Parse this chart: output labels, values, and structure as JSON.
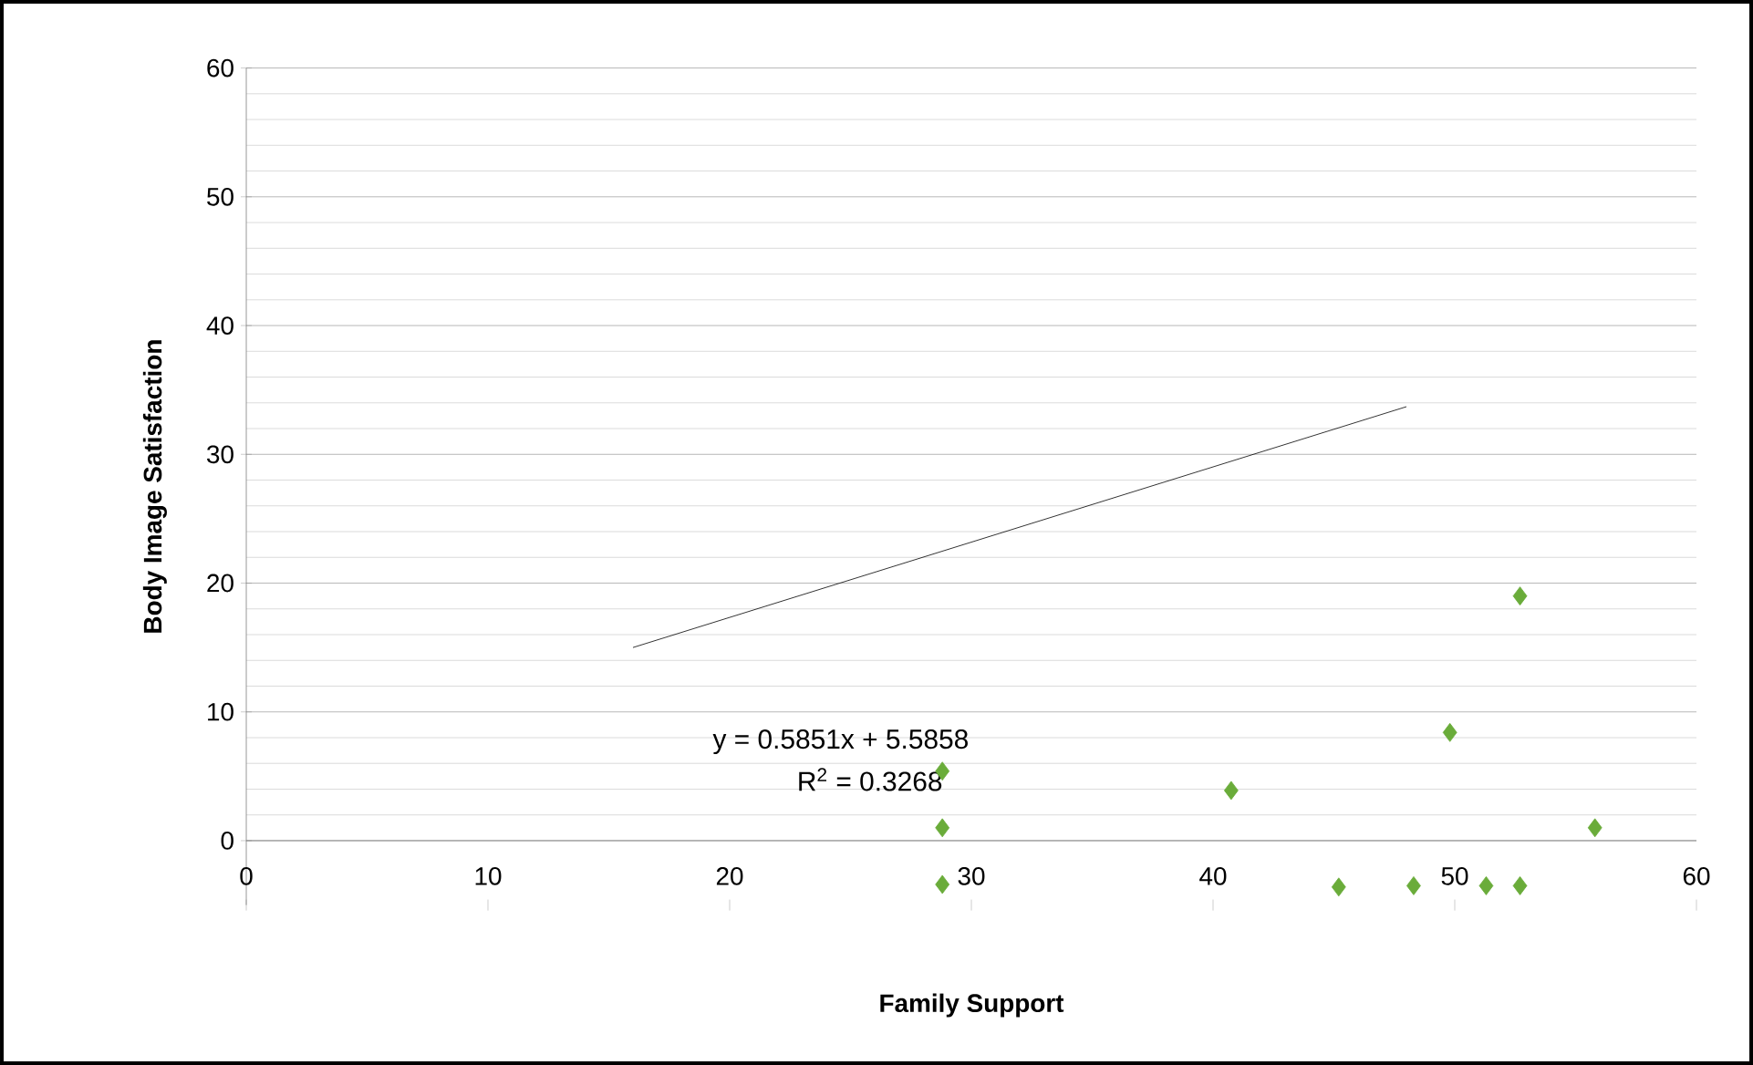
{
  "chart_data": {
    "type": "scatter",
    "xlabel": "Family Support",
    "ylabel": "Body Image Satisfaction",
    "xlim": [
      0,
      60
    ],
    "xticks": [
      0,
      10,
      20,
      30,
      40,
      50,
      60
    ],
    "ylim": [
      -5,
      60
    ],
    "yticks": [
      0,
      10,
      20,
      30,
      40,
      50,
      60
    ],
    "grid": "y",
    "legend": false,
    "marker": "diamond",
    "series": [
      {
        "type": "scatter",
        "color": "#6aac3a",
        "x": [
          28.8,
          28.8,
          28.8,
          40.75,
          45.2,
          48.3,
          49.8,
          51.3,
          52.7,
          52.7,
          55.8
        ],
        "values": [
          5.4,
          1.0,
          -3.4,
          3.9,
          -3.6,
          -3.5,
          8.4,
          -3.5,
          -3.5,
          19.0,
          1.0
        ]
      },
      {
        "type": "line",
        "color": "#000000",
        "marker": "none",
        "x": [
          16,
          48
        ],
        "values": [
          15.0,
          33.7
        ]
      }
    ],
    "annotations": [
      "y = 0.5851x + 5.5858",
      "R$^{2}$ = 0.3268"
    ]
  }
}
